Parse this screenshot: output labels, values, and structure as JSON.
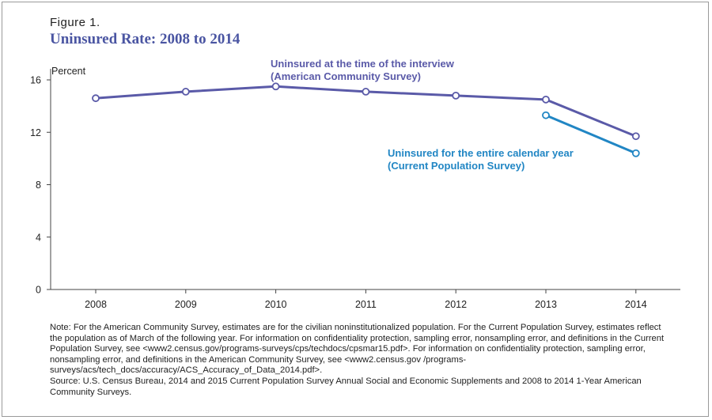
{
  "figure": {
    "label": "Figure 1.",
    "title": "Uninsured Rate: 2008 to 2014"
  },
  "chart_data": {
    "type": "line",
    "ylabel": "Percent",
    "xlabel": "",
    "ylim": [
      0,
      16
    ],
    "yticks": [
      "0",
      "4",
      "8",
      "12",
      "16"
    ],
    "categories": [
      "2008",
      "2009",
      "2010",
      "2011",
      "2012",
      "2013",
      "2014"
    ],
    "grid": false,
    "series": [
      {
        "name_line1": "Uninsured at the time of the interview",
        "name_line2": "(American Community Survey)",
        "color": "#5a5aa8",
        "values": [
          14.6,
          15.1,
          15.5,
          15.1,
          14.8,
          14.5,
          11.7
        ]
      },
      {
        "name_line1": "Uninsured for the entire calendar year",
        "name_line2": "(Current Population Survey)",
        "color": "#2186c4",
        "values": [
          null,
          null,
          null,
          null,
          null,
          13.3,
          10.4
        ]
      }
    ]
  },
  "note": {
    "text": "Note: For the American Community Survey, estimates are for the civilian noninstitutionalized population. For the Current Population Survey, estimates reflect the population as of March of the following year. For information on confidentiality protection, sampling error, nonsampling error, and definitions in the Current Population Survey, see <www2.census.gov/programs-surveys/cps/techdocs/cpsmar15.pdf>. For information on confidentiality protection, sampling error, nonsampling error, and definitions in the American Community Survey, see <www2.census.gov /programs-surveys/acs/tech_docs/accuracy/ACS_Accuracy_of_Data_2014.pdf>.",
    "source": "Source: U.S. Census Bureau, 2014 and 2015 Current Population Survey Annual Social and Economic Supplements and 2008 to 2014 1-Year American Community Surveys."
  }
}
